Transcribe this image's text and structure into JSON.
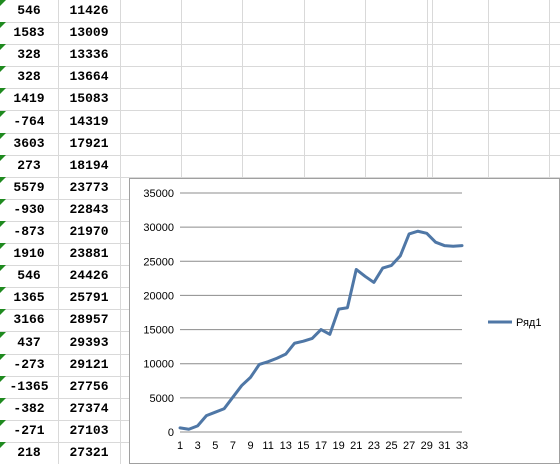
{
  "sheet": {
    "rows": [
      {
        "a": "546",
        "b": "11426"
      },
      {
        "a": "1583",
        "b": "13009"
      },
      {
        "a": "328",
        "b": "13336"
      },
      {
        "a": "328",
        "b": "13664"
      },
      {
        "a": "1419",
        "b": "15083"
      },
      {
        "a": "-764",
        "b": "14319"
      },
      {
        "a": "3603",
        "b": "17921"
      },
      {
        "a": "273",
        "b": "18194"
      },
      {
        "a": "5579",
        "b": "23773"
      },
      {
        "a": "-930",
        "b": "22843"
      },
      {
        "a": "-873",
        "b": "21970"
      },
      {
        "a": "1910",
        "b": "23881"
      },
      {
        "a": "546",
        "b": "24426"
      },
      {
        "a": "1365",
        "b": "25791"
      },
      {
        "a": "3166",
        "b": "28957"
      },
      {
        "a": "437",
        "b": "29393"
      },
      {
        "a": "-273",
        "b": "29121"
      },
      {
        "a": "-1365",
        "b": "27756"
      },
      {
        "a": "-382",
        "b": "27374"
      },
      {
        "a": "-271",
        "b": "27103"
      },
      {
        "a": "218",
        "b": "27321"
      }
    ],
    "indicator_color": "#1f8a1f"
  },
  "chart_data": {
    "type": "line",
    "x": [
      1,
      2,
      3,
      4,
      5,
      6,
      7,
      8,
      9,
      10,
      11,
      12,
      13,
      14,
      15,
      16,
      17,
      18,
      19,
      20,
      21,
      22,
      23,
      24,
      25,
      26,
      27,
      28,
      29,
      30,
      31,
      32,
      33
    ],
    "x_tick_labels": [
      "1",
      "3",
      "5",
      "7",
      "9",
      "11",
      "13",
      "15",
      "17",
      "19",
      "21",
      "23",
      "25",
      "27",
      "29",
      "31",
      "33"
    ],
    "series": [
      {
        "name": "Ряд1",
        "color": "#4f77a6",
        "values": [
          600,
          400,
          900,
          2400,
          2900,
          3400,
          5100,
          6800,
          8000,
          9900,
          10300,
          10800,
          11400,
          13000,
          13300,
          13700,
          15000,
          14300,
          18000,
          18200,
          23800,
          22800,
          21900,
          24000,
          24400,
          25800,
          29000,
          29400,
          29100,
          27800,
          27300,
          27200,
          27300
        ]
      }
    ],
    "y_ticks": [
      0,
      5000,
      10000,
      15000,
      20000,
      25000,
      30000,
      35000
    ],
    "ylim": [
      0,
      35000
    ],
    "xlim": [
      1,
      33
    ],
    "grid": true,
    "legend": "right"
  }
}
